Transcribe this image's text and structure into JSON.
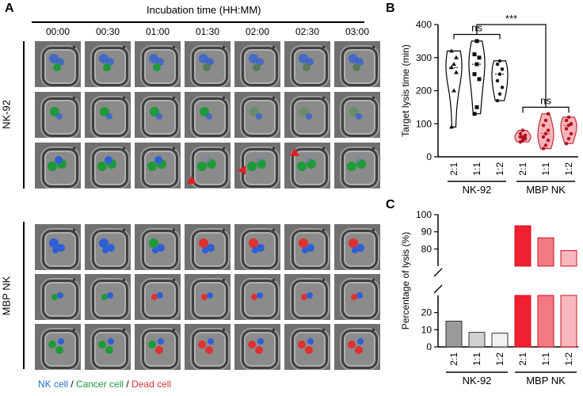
{
  "panel_a": {
    "letter": "A",
    "title": "Incubation time (HH:MM)",
    "times": [
      "00:00",
      "00:30",
      "01:00",
      "01:30",
      "02:00",
      "02:30",
      "03:00"
    ],
    "group1_label": "NK-92",
    "group2_label": "MBP NK",
    "legend": {
      "nk": "NK cell",
      "sep1": " / ",
      "cancer": "Cancer cell",
      "sep2": " / ",
      "dead": "Dead cell"
    },
    "colors": {
      "nk": "#2f5fd6",
      "cancer": "#1e9a3a",
      "dead": "#e03030",
      "arrow": "#e02020"
    }
  },
  "chart_data": [
    {
      "id": "B",
      "letter": "B",
      "type": "violin",
      "ylabel": "Target lysis time (min)",
      "ylim": [
        0,
        400
      ],
      "yticks": [
        0,
        100,
        200,
        300,
        400
      ],
      "categories": [
        "2:1",
        "1:1",
        "1:2",
        "2:1",
        "1:1",
        "1:2"
      ],
      "groups": [
        {
          "name": "NK-92",
          "categories": [
            "2:1",
            "1:1",
            "1:2"
          ]
        },
        {
          "name": "MBP NK",
          "categories": [
            "2:1",
            "1:1",
            "1:2"
          ]
        }
      ],
      "series": [
        {
          "name": "NK-92 2:1",
          "values": [
            90,
            200,
            255,
            270,
            280,
            300,
            320
          ]
        },
        {
          "name": "NK-92 1:1",
          "values": [
            130,
            150,
            235,
            250,
            280,
            300,
            310,
            350
          ]
        },
        {
          "name": "NK-92 1:2",
          "values": [
            170,
            190,
            210,
            230,
            250,
            265,
            280,
            290
          ]
        },
        {
          "name": "MBP NK 2:1",
          "values": [
            45,
            50,
            55,
            60,
            60,
            65,
            70,
            80
          ]
        },
        {
          "name": "MBP NK 1:1",
          "values": [
            25,
            35,
            50,
            60,
            70,
            80,
            95,
            110,
            130
          ]
        },
        {
          "name": "MBP NK 1:2",
          "values": [
            40,
            55,
            70,
            85,
            95,
            100,
            110,
            120
          ]
        }
      ],
      "annotations": [
        {
          "text": "ns",
          "between": [
            "NK-92 2:1",
            "NK-92 1:2"
          ]
        },
        {
          "text": "***",
          "between": [
            "NK-92 1:1",
            "MBP NK 1:1"
          ]
        },
        {
          "text": "ns",
          "between": [
            "MBP NK 2:1",
            "MBP NK 1:2"
          ]
        }
      ]
    },
    {
      "id": "C",
      "letter": "C",
      "type": "bar",
      "ylabel": "Percentage of lysis (%)",
      "ylim": [
        0,
        100
      ],
      "axis_break": [
        30,
        70
      ],
      "yticks": [
        0,
        10,
        20,
        80,
        90,
        100
      ],
      "categories": [
        "2:1",
        "1:1",
        "1:2",
        "2:1",
        "1:1",
        "1:2"
      ],
      "groups": [
        {
          "name": "NK-92",
          "categories": [
            "2:1",
            "1:1",
            "1:2"
          ]
        },
        {
          "name": "MBP NK",
          "categories": [
            "2:1",
            "1:1",
            "1:2"
          ]
        }
      ],
      "values": [
        15,
        8.5,
        8,
        93.5,
        86.5,
        79
      ],
      "colors": [
        "#9a9a9a",
        "#d0d0d0",
        "#f2f2f2",
        "#f02030",
        "#f37a82",
        "#f8b8bd"
      ]
    }
  ]
}
